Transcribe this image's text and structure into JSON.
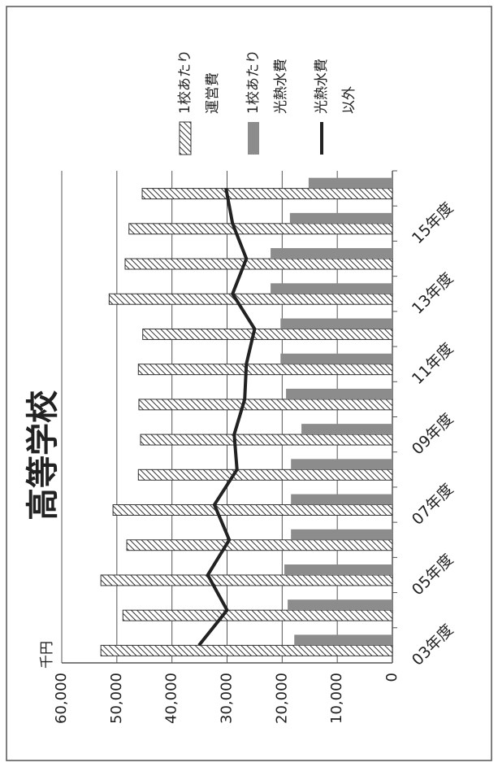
{
  "chart_data": {
    "type": "bar",
    "title": "高等学校",
    "y_unit_label": "千円",
    "categories": [
      "03年度",
      null,
      "05年度",
      null,
      "07年度",
      null,
      "09年度",
      null,
      "11年度",
      null,
      "13年度",
      null,
      "15年度",
      null
    ],
    "series": [
      {
        "name": "1校あたり\n運営費",
        "type": "bar",
        "color": "hatch",
        "values": [
          52900,
          48900,
          52900,
          48200,
          50700,
          46100,
          45700,
          46000,
          46100,
          45300,
          51400,
          48500,
          47800,
          45400
        ]
      },
      {
        "name": "1校あたり\n光熱水費",
        "type": "bar",
        "color": "#8c8c8c",
        "values": [
          17800,
          19000,
          19600,
          18400,
          18400,
          18400,
          16500,
          19300,
          20300,
          20300,
          22100,
          22100,
          18600,
          15200
        ]
      },
      {
        "name": "光熱水費\n以外",
        "type": "line",
        "color": "#222222",
        "values": [
          35100,
          30000,
          33500,
          29600,
          32300,
          28200,
          28700,
          26800,
          26500,
          25000,
          29000,
          26500,
          29000,
          30200
        ]
      }
    ],
    "ylim": [
      0,
      60000
    ],
    "yticks": [
      0,
      {
        "value": 10000,
        "label": "10,000"
      },
      {
        "value": 20000,
        "label": "20,000"
      },
      {
        "value": 30000,
        "label": "30,000"
      },
      {
        "value": 40000,
        "label": "40,000"
      },
      {
        "value": 50000,
        "label": "50,000"
      },
      {
        "value": 60000,
        "label": "60,000"
      }
    ],
    "grid": true,
    "legend": "right"
  }
}
